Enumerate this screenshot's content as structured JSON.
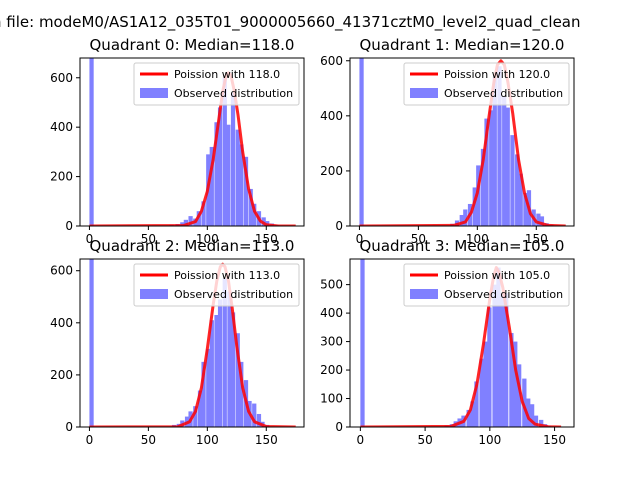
{
  "figure": {
    "suptitle": "n file: modeM0/AS1A12_035T01_9000005660_41371cztM0_level2_quad_clean",
    "colors": {
      "poisson_line": "#ff0000",
      "observed_bars": "#8080ff",
      "axis": "#000000",
      "background": "#ffffff"
    }
  },
  "chart_data": [
    {
      "type": "bar",
      "title": "Quadrant 0: Median=118.0",
      "xlim": [
        -8,
        182
      ],
      "ylim": [
        0,
        680
      ],
      "xticks": [
        0,
        50,
        100,
        150
      ],
      "yticks": [
        0,
        200,
        400,
        600
      ],
      "legend": "top-right",
      "series": [
        {
          "name": "Poission with 118.0",
          "kind": "line",
          "x": [
            0,
            80,
            90,
            95,
            100,
            105,
            110,
            113,
            116,
            118,
            120,
            123,
            126,
            130,
            135,
            140,
            145,
            150,
            160,
            175
          ],
          "values": [
            0,
            2,
            18,
            60,
            140,
            270,
            440,
            545,
            610,
            620,
            610,
            545,
            450,
            300,
            150,
            60,
            20,
            5,
            0,
            0
          ]
        },
        {
          "name": "Observed distribution",
          "kind": "hist",
          "bin_width": 3.6,
          "bins": [
            [
              0,
              680
            ],
            [
              68,
              5
            ],
            [
              73,
              8
            ],
            [
              77,
              15
            ],
            [
              80,
              25
            ],
            [
              84,
              40
            ],
            [
              88,
              30
            ],
            [
              91,
              60
            ],
            [
              95,
              100
            ],
            [
              99,
              290
            ],
            [
              102,
              320
            ],
            [
              106,
              420
            ],
            [
              109,
              480
            ],
            [
              113,
              600
            ],
            [
              116,
              410
            ],
            [
              120,
              540
            ],
            [
              124,
              390
            ],
            [
              127,
              330
            ],
            [
              131,
              280
            ],
            [
              135,
              150
            ],
            [
              138,
              90
            ],
            [
              142,
              60
            ],
            [
              146,
              35
            ],
            [
              149,
              20
            ],
            [
              153,
              10
            ],
            [
              157,
              5
            ]
          ]
        }
      ]
    },
    {
      "type": "bar",
      "title": "Quadrant 1: Median=120.0",
      "xlim": [
        -8,
        182
      ],
      "ylim": [
        0,
        610
      ],
      "xticks": [
        0,
        50,
        100,
        150
      ],
      "yticks": [
        0,
        200,
        400,
        600
      ],
      "legend": "top-right",
      "series": [
        {
          "name": "Poission with 120.0",
          "kind": "line",
          "x": [
            0,
            80,
            90,
            95,
            100,
            105,
            110,
            114,
            117,
            120,
            123,
            126,
            130,
            135,
            140,
            145,
            150,
            160,
            175
          ],
          "values": [
            0,
            2,
            15,
            50,
            120,
            240,
            400,
            520,
            585,
            600,
            585,
            520,
            410,
            240,
            120,
            45,
            15,
            2,
            0
          ]
        },
        {
          "name": "Observed distribution",
          "kind": "hist",
          "bin_width": 3.6,
          "bins": [
            [
              0,
              610
            ],
            [
              77,
              8
            ],
            [
              81,
              20
            ],
            [
              85,
              40
            ],
            [
              88,
              60
            ],
            [
              92,
              80
            ],
            [
              96,
              140
            ],
            [
              99,
              220
            ],
            [
              103,
              280
            ],
            [
              106,
              390
            ],
            [
              110,
              420
            ],
            [
              113,
              540
            ],
            [
              117,
              580
            ],
            [
              121,
              470
            ],
            [
              124,
              430
            ],
            [
              128,
              330
            ],
            [
              132,
              260
            ],
            [
              135,
              190
            ],
            [
              139,
              120
            ],
            [
              142,
              130
            ],
            [
              146,
              60
            ],
            [
              150,
              45
            ],
            [
              153,
              35
            ],
            [
              157,
              10
            ],
            [
              161,
              5
            ]
          ]
        }
      ]
    },
    {
      "type": "bar",
      "title": "Quadrant 2: Median=113.0",
      "xlim": [
        -8,
        182
      ],
      "ylim": [
        0,
        645
      ],
      "xticks": [
        0,
        50,
        100,
        150
      ],
      "yticks": [
        0,
        200,
        400,
        600
      ],
      "legend": "top-right",
      "series": [
        {
          "name": "Poission with 113.0",
          "kind": "line",
          "x": [
            0,
            75,
            85,
            90,
            95,
            100,
            105,
            108,
            111,
            113,
            115,
            118,
            121,
            125,
            130,
            135,
            140,
            150,
            175
          ],
          "values": [
            0,
            1,
            20,
            60,
            150,
            300,
            470,
            560,
            615,
            625,
            615,
            560,
            460,
            310,
            150,
            60,
            20,
            2,
            0
          ]
        },
        {
          "name": "Observed distribution",
          "kind": "hist",
          "bin_width": 3.6,
          "bins": [
            [
              0,
              645
            ],
            [
              70,
              8
            ],
            [
              74,
              12
            ],
            [
              77,
              25
            ],
            [
              81,
              40
            ],
            [
              84,
              60
            ],
            [
              88,
              80
            ],
            [
              92,
              140
            ],
            [
              95,
              250
            ],
            [
              99,
              300
            ],
            [
              102,
              410
            ],
            [
              106,
              430
            ],
            [
              109,
              490
            ],
            [
              113,
              570
            ],
            [
              117,
              520
            ],
            [
              120,
              440
            ],
            [
              124,
              360
            ],
            [
              127,
              250
            ],
            [
              131,
              180
            ],
            [
              134,
              100
            ],
            [
              138,
              90
            ],
            [
              142,
              50
            ],
            [
              145,
              20
            ],
            [
              149,
              8
            ]
          ]
        }
      ]
    },
    {
      "type": "bar",
      "title": "Quadrant 3: Median=105.0",
      "xlim": [
        -8,
        165
      ],
      "ylim": [
        0,
        590
      ],
      "xticks": [
        0,
        50,
        100,
        150
      ],
      "yticks": [
        0,
        100,
        200,
        300,
        400,
        500
      ],
      "legend": "top-right",
      "series": [
        {
          "name": "Poission with 105.0",
          "kind": "line",
          "x": [
            0,
            70,
            80,
            85,
            90,
            95,
            100,
            103,
            105,
            107,
            110,
            115,
            120,
            125,
            130,
            135,
            145,
            155
          ],
          "values": [
            0,
            2,
            20,
            60,
            150,
            290,
            450,
            530,
            560,
            545,
            490,
            350,
            200,
            90,
            30,
            10,
            1,
            0
          ]
        },
        {
          "name": "Observed distribution",
          "kind": "hist",
          "bin_width": 3.3,
          "bins": [
            [
              0,
              590
            ],
            [
              65,
              5
            ],
            [
              69,
              10
            ],
            [
              72,
              20
            ],
            [
              75,
              30
            ],
            [
              78,
              40
            ],
            [
              82,
              60
            ],
            [
              85,
              90
            ],
            [
              88,
              160
            ],
            [
              92,
              240
            ],
            [
              95,
              300
            ],
            [
              98,
              420
            ],
            [
              102,
              500
            ],
            [
              105,
              560
            ],
            [
              108,
              470
            ],
            [
              111,
              470
            ],
            [
              115,
              330
            ],
            [
              118,
              300
            ],
            [
              121,
              220
            ],
            [
              125,
              170
            ],
            [
              128,
              100
            ],
            [
              131,
              80
            ],
            [
              134,
              40
            ],
            [
              138,
              25
            ],
            [
              141,
              10
            ],
            [
              144,
              5
            ]
          ]
        }
      ]
    }
  ]
}
